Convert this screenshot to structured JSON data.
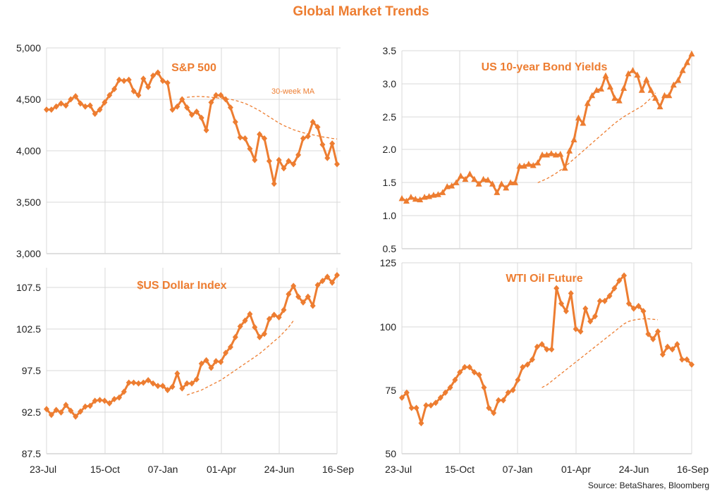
{
  "page": {
    "title": "Global Market Trends",
    "source": "Source: BetaShares, Bloomberg"
  },
  "colors": {
    "series": "#ed7d31",
    "grid": "#d9d9d9",
    "axis": "#bfbfbf"
  },
  "chart_data": [
    {
      "type": "line",
      "title": "S&P 500",
      "marker": "diamond",
      "x_ticks": [
        "23-Jul",
        "15-Oct",
        "07-Jan",
        "01-Apr",
        "24-Jun",
        "16-Sep"
      ],
      "y_ticks": [
        "3,000",
        "3,500",
        "4,000",
        "4,500",
        "5,000"
      ],
      "ylim": [
        3000,
        5000
      ],
      "annotation": "30-week MA",
      "series": [
        {
          "values": [
            4400,
            4400,
            4430,
            4460,
            4440,
            4500,
            4530,
            4460,
            4430,
            4440,
            4360,
            4400,
            4470,
            4540,
            4600,
            4690,
            4680,
            4690,
            4580,
            4540,
            4700,
            4620,
            4730,
            4760,
            4680,
            4660,
            4400,
            4430,
            4500,
            4420,
            4350,
            4380,
            4320,
            4200,
            4470,
            4540,
            4540,
            4500,
            4420,
            4280,
            4130,
            4120,
            4020,
            3910,
            4160,
            4120,
            3900,
            3680,
            3910,
            3830,
            3900,
            3870,
            3960,
            4120,
            4140,
            4280,
            4230,
            4060,
            3930,
            4070,
            3870
          ]
        },
        {
          "dashed": true,
          "start_index": 29,
          "values": [
            4520,
            4525,
            4528,
            4527,
            4525,
            4520,
            4515,
            4510,
            4505,
            4500,
            4490,
            4475,
            4460,
            4440,
            4415,
            4390,
            4360,
            4330,
            4300,
            4270,
            4245,
            4225,
            4205,
            4190,
            4175,
            4165,
            4155,
            4145,
            4135,
            4128,
            4120,
            4115
          ]
        }
      ]
    },
    {
      "type": "line",
      "title": "US  10-year Bond Yields",
      "marker": "triangle",
      "x_ticks": [
        "23-Jul",
        "15-Oct",
        "07-Jan",
        "01-Apr",
        "24-Jun",
        "16-Sep"
      ],
      "y_ticks": [
        "0.5",
        "1.0",
        "1.5",
        "2.0",
        "2.5",
        "3.0",
        "3.5"
      ],
      "ylim": [
        0.5,
        3.5
      ],
      "series": [
        {
          "values": [
            1.26,
            1.22,
            1.28,
            1.25,
            1.24,
            1.28,
            1.29,
            1.31,
            1.32,
            1.35,
            1.44,
            1.45,
            1.5,
            1.6,
            1.55,
            1.63,
            1.55,
            1.48,
            1.55,
            1.54,
            1.48,
            1.35,
            1.48,
            1.42,
            1.5,
            1.5,
            1.75,
            1.75,
            1.78,
            1.76,
            1.8,
            1.92,
            1.92,
            1.94,
            1.92,
            1.93,
            1.72,
            1.98,
            2.15,
            2.48,
            2.4,
            2.7,
            2.82,
            2.9,
            2.92,
            3.12,
            2.95,
            2.78,
            2.74,
            2.93,
            3.15,
            3.2,
            3.13,
            2.9,
            3.06,
            2.9,
            2.78,
            2.65,
            2.82,
            2.82,
            2.98,
            3.05,
            3.2,
            3.32,
            3.45
          ]
        },
        {
          "dashed": true,
          "start_index": 30,
          "values": [
            1.5,
            1.53,
            1.56,
            1.6,
            1.64,
            1.69,
            1.74,
            1.8,
            1.86,
            1.92,
            1.98,
            2.04,
            2.1,
            2.16,
            2.22,
            2.28,
            2.34,
            2.4,
            2.45,
            2.5,
            2.54,
            2.58,
            2.62,
            2.66,
            2.72,
            2.78,
            2.86
          ]
        }
      ]
    },
    {
      "type": "line",
      "title": "$US Dollar Index",
      "marker": "diamond",
      "x_ticks": [
        "23-Jul",
        "15-Oct",
        "07-Jan",
        "01-Apr",
        "24-Jun",
        "16-Sep"
      ],
      "y_ticks": [
        "87.5",
        "92.5",
        "97.5",
        "102.5",
        "107.5"
      ],
      "ylim": [
        87.5,
        110
      ],
      "series": [
        {
          "values": [
            92.9,
            92.2,
            92.8,
            92.5,
            93.4,
            92.7,
            92.0,
            92.6,
            93.2,
            93.3,
            93.9,
            94.0,
            93.9,
            93.6,
            94.1,
            94.3,
            95.0,
            96.1,
            96.1,
            96.0,
            96.1,
            96.4,
            96.0,
            95.7,
            95.7,
            95.2,
            95.6,
            97.2,
            95.4,
            96.0,
            96.0,
            96.5,
            98.4,
            98.8,
            97.9,
            98.7,
            98.6,
            99.7,
            100.4,
            101.6,
            102.9,
            103.6,
            104.4,
            102.8,
            101.6,
            102.0,
            103.8,
            104.3,
            104.0,
            104.9,
            106.8,
            107.8,
            106.5,
            105.8,
            106.5,
            105.4,
            107.9,
            108.4,
            108.9,
            108.2,
            109.1
          ]
        },
        {
          "dashed": true,
          "start_index": 29,
          "values": [
            94.6,
            94.8,
            95.0,
            95.2,
            95.5,
            95.8,
            96.1,
            96.4,
            96.8,
            97.2,
            97.6,
            98.0,
            98.4,
            98.8,
            99.2,
            99.6,
            100.1,
            100.6,
            101.1,
            101.6,
            102.2,
            102.8,
            103.6
          ]
        }
      ]
    },
    {
      "type": "line",
      "title": "WTI Oil Future",
      "marker": "diamond",
      "x_ticks": [
        "23-Jul",
        "15-Oct",
        "07-Jan",
        "01-Apr",
        "24-Jun",
        "16-Sep"
      ],
      "y_ticks": [
        "50",
        "75",
        "100",
        "125"
      ],
      "ylim": [
        50,
        125
      ],
      "series": [
        {
          "values": [
            72,
            74,
            68,
            68,
            62,
            69,
            69,
            70,
            72,
            74,
            76,
            79,
            82,
            84,
            84,
            82,
            81,
            76,
            68,
            66,
            71,
            71,
            74,
            75,
            79,
            84,
            85,
            87,
            92,
            93,
            91,
            91,
            115,
            109,
            106,
            113,
            99,
            98,
            107,
            102,
            104,
            110,
            110,
            112,
            115,
            118,
            120,
            109,
            107,
            108,
            106,
            97,
            95,
            98,
            89,
            92,
            91,
            93,
            87,
            87,
            85
          ]
        },
        {
          "dashed": true,
          "start_index": 29,
          "values": [
            76,
            77,
            78.5,
            80,
            81.5,
            83,
            84.5,
            86,
            87.5,
            89,
            90.5,
            92,
            93.5,
            95,
            96.5,
            98,
            99.5,
            101,
            102,
            102.5,
            102.8,
            103,
            103,
            102.8,
            102.6
          ]
        }
      ]
    }
  ]
}
